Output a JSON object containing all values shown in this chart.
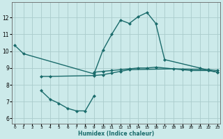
{
  "title": "",
  "xlabel": "Humidex (Indice chaleur)",
  "ylabel": "",
  "bg_color": "#cceaea",
  "grid_color": "#aacccc",
  "line_color": "#1a6b6b",
  "x_ticks": [
    0,
    1,
    2,
    3,
    4,
    5,
    6,
    7,
    8,
    9,
    10,
    11,
    12,
    13,
    14,
    15,
    16,
    17,
    18,
    19,
    20,
    21,
    22,
    23
  ],
  "y_ticks": [
    6,
    7,
    8,
    9,
    10,
    11,
    12
  ],
  "xlim": [
    -0.3,
    23.3
  ],
  "ylim": [
    5.7,
    12.9
  ],
  "lines": [
    {
      "x": [
        0,
        1,
        9,
        10,
        11,
        12,
        13,
        14,
        15,
        16,
        17,
        21,
        22,
        23
      ],
      "y": [
        10.35,
        9.85,
        8.65,
        10.05,
        11.0,
        11.85,
        11.65,
        12.05,
        12.3,
        11.65,
        9.5,
        9.0,
        8.85,
        8.75
      ],
      "marker": "D",
      "markersize": 2.0,
      "linewidth": 1.0
    },
    {
      "x": [
        3,
        4,
        9,
        10,
        11,
        12,
        13,
        18,
        22,
        23
      ],
      "y": [
        8.5,
        8.5,
        8.55,
        8.6,
        8.7,
        8.8,
        8.9,
        8.95,
        8.9,
        8.85
      ],
      "marker": "D",
      "markersize": 2.0,
      "linewidth": 1.0
    },
    {
      "x": [
        3,
        4,
        5,
        6,
        7,
        8,
        9
      ],
      "y": [
        7.65,
        7.15,
        6.9,
        6.6,
        6.45,
        6.45,
        7.35
      ],
      "marker": "D",
      "markersize": 2.0,
      "linewidth": 1.0
    },
    {
      "x": [
        9,
        10,
        11,
        12,
        13,
        14,
        15,
        16,
        19,
        20,
        22,
        23
      ],
      "y": [
        8.75,
        8.8,
        8.85,
        8.9,
        8.95,
        9.0,
        9.0,
        9.05,
        8.9,
        8.85,
        8.85,
        8.75
      ],
      "marker": "D",
      "markersize": 2.0,
      "linewidth": 1.0
    }
  ]
}
